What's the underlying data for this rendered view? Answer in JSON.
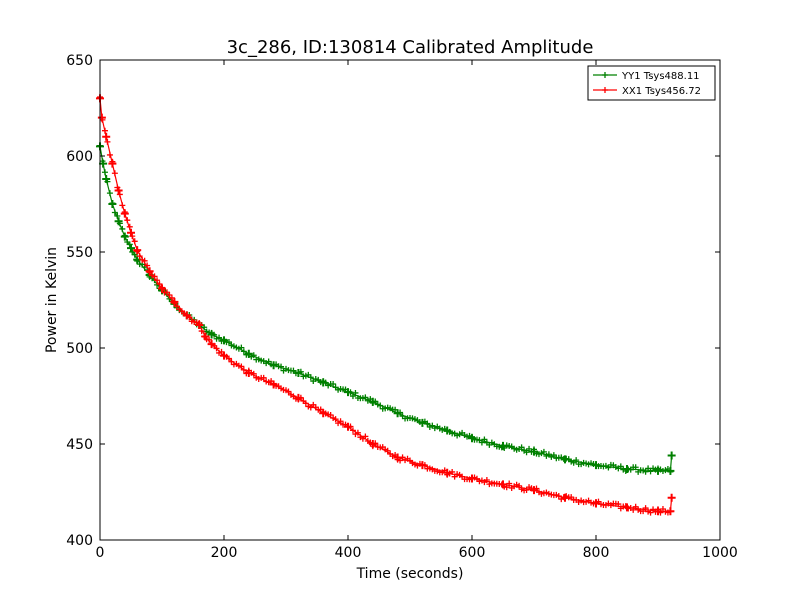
{
  "chart_data": {
    "type": "line",
    "title": "3c_286, ID:130814 Calibrated Amplitude",
    "xlabel": "Time (seconds)",
    "ylabel": "Power in Kelvin",
    "xlim": [
      0,
      1000
    ],
    "ylim": [
      400,
      650
    ],
    "xticks": [
      "0",
      "200",
      "400",
      "600",
      "800",
      "1000"
    ],
    "yticks": [
      "400",
      "450",
      "500",
      "550",
      "600",
      "650"
    ],
    "grid": false,
    "legend_position": "top-right",
    "marker": "plus",
    "series": [
      {
        "name": "YY1 Tsys488.11",
        "color": "#008000",
        "x": [
          0,
          5,
          10,
          20,
          30,
          40,
          50,
          60,
          80,
          100,
          120,
          140,
          160,
          180,
          200,
          240,
          280,
          320,
          360,
          400,
          440,
          480,
          520,
          560,
          600,
          650,
          700,
          750,
          800,
          850,
          900,
          920,
          922
        ],
        "y": [
          605,
          596,
          588,
          575,
          566,
          558,
          552,
          546,
          538,
          530,
          523,
          517,
          512,
          507,
          504,
          497,
          491,
          487,
          482,
          477,
          472,
          466,
          461,
          457,
          453,
          449,
          446,
          442,
          439,
          437,
          436,
          436,
          444
        ]
      },
      {
        "name": "XX1 Tsys456.72",
        "color": "#ff0000",
        "x": [
          0,
          3,
          10,
          20,
          30,
          40,
          50,
          60,
          80,
          100,
          120,
          140,
          160,
          170,
          180,
          200,
          240,
          280,
          320,
          360,
          400,
          440,
          480,
          520,
          560,
          600,
          650,
          700,
          750,
          800,
          850,
          900,
          920,
          922
        ],
        "y": [
          630,
          620,
          610,
          596,
          582,
          570,
          560,
          551,
          540,
          531,
          524,
          517,
          512,
          506,
          502,
          496,
          487,
          481,
          474,
          466,
          459,
          450,
          443,
          439,
          435,
          432,
          429,
          426,
          422,
          419,
          417,
          415,
          415,
          422
        ]
      }
    ]
  }
}
